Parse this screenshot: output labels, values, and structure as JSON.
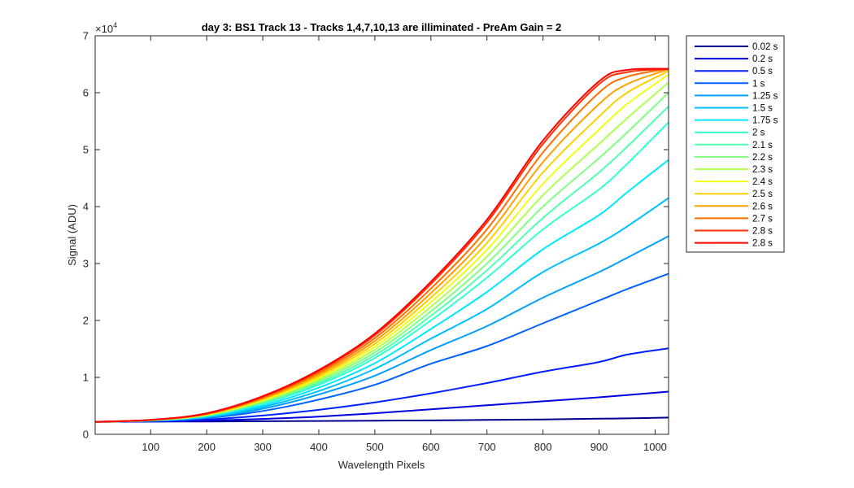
{
  "chart_data": {
    "type": "line",
    "title": "day 3: BS1  Track 13 - Tracks 1,4,7,10,13 are illiminated - PreAm Gain = 2",
    "xlabel": "Wavelength Pixels",
    "ylabel": "Signal (ADU)",
    "y_exponent_label": "×10",
    "y_exponent_power": "4",
    "xlim": [
      1,
      1024
    ],
    "ylim": [
      0,
      70000
    ],
    "xticks": [
      100,
      200,
      300,
      400,
      500,
      600,
      700,
      800,
      900,
      1000
    ],
    "xtick_labels": [
      "100",
      "200",
      "300",
      "400",
      "500",
      "600",
      "700",
      "800",
      "900",
      "1000"
    ],
    "yticks": [
      0,
      10000,
      20000,
      30000,
      40000,
      50000,
      60000,
      70000
    ],
    "ytick_labels": [
      "0",
      "1",
      "2",
      "3",
      "4",
      "5",
      "6",
      "7"
    ],
    "grid": false,
    "legend_position": "outside-right",
    "x": [
      1,
      100,
      200,
      300,
      400,
      500,
      600,
      700,
      800,
      900,
      950,
      1024
    ],
    "series": [
      {
        "name": "0.02 s",
        "color": "#00008f",
        "values": [
          2200,
          2230,
          2260,
          2300,
          2340,
          2390,
          2450,
          2530,
          2620,
          2740,
          2800,
          2950
        ]
      },
      {
        "name": "0.2 s",
        "color": "#0000df",
        "values": [
          2200,
          2250,
          2400,
          2700,
          3100,
          3700,
          4400,
          5100,
          5800,
          6500,
          6900,
          7500
        ]
      },
      {
        "name": "0.5 s",
        "color": "#0020ff",
        "values": [
          2200,
          2300,
          2600,
          3300,
          4300,
          5600,
          7200,
          9000,
          11000,
          12700,
          14000,
          15100
        ]
      },
      {
        "name": "1 s",
        "color": "#0060ff",
        "values": [
          2200,
          2350,
          2850,
          4100,
          6100,
          8700,
          12400,
          15500,
          19500,
          23500,
          25500,
          28200
        ]
      },
      {
        "name": "1.25 s",
        "color": "#009fff",
        "values": [
          2200,
          2380,
          2950,
          4500,
          7000,
          10300,
          14800,
          19000,
          24000,
          28500,
          31000,
          34800
        ]
      },
      {
        "name": "1.5 s",
        "color": "#00bfff",
        "values": [
          2200,
          2410,
          3050,
          4800,
          7600,
          11500,
          16800,
          22000,
          28500,
          33500,
          36500,
          41500
        ]
      },
      {
        "name": "1.75 s",
        "color": "#00e8ff",
        "values": [
          2200,
          2430,
          3150,
          5100,
          8200,
          12500,
          18500,
          25000,
          32500,
          38500,
          42500,
          48200
        ]
      },
      {
        "name": "2 s",
        "color": "#30ffcf",
        "values": [
          2200,
          2450,
          3250,
          5400,
          8700,
          13400,
          20000,
          27500,
          36000,
          43000,
          47500,
          54800
        ]
      },
      {
        "name": "2.1 s",
        "color": "#50ffaf",
        "values": [
          2200,
          2460,
          3300,
          5550,
          9000,
          13900,
          20800,
          28800,
          38000,
          46000,
          50500,
          57600
        ]
      },
      {
        "name": "2.2 s",
        "color": "#80ff80",
        "values": [
          2200,
          2470,
          3350,
          5700,
          9300,
          14400,
          21600,
          30000,
          40000,
          48500,
          53000,
          60000
        ]
      },
      {
        "name": "2.3 s",
        "color": "#afff50",
        "values": [
          2200,
          2480,
          3400,
          5850,
          9600,
          14900,
          22400,
          31200,
          42000,
          51000,
          55500,
          61800
        ]
      },
      {
        "name": "2.4 s",
        "color": "#efff10",
        "values": [
          2200,
          2490,
          3450,
          6000,
          9900,
          15400,
          23200,
          32400,
          44000,
          53500,
          58000,
          63200
        ]
      },
      {
        "name": "2.5 s",
        "color": "#ffcf00",
        "values": [
          2200,
          2500,
          3500,
          6150,
          10200,
          15900,
          24000,
          33600,
          46000,
          55800,
          60000,
          63800
        ]
      },
      {
        "name": "2.6 s",
        "color": "#ff9f00",
        "values": [
          2200,
          2510,
          3550,
          6300,
          10500,
          16400,
          24800,
          34800,
          47800,
          58000,
          61500,
          64100
        ]
      },
      {
        "name": "2.7 s",
        "color": "#ff6f00",
        "values": [
          2200,
          2520,
          3600,
          6450,
          10800,
          16900,
          25600,
          36000,
          49500,
          60000,
          62800,
          64200
        ]
      },
      {
        "name": "2.8 s",
        "color": "#ff3000",
        "values": [
          2200,
          2530,
          3650,
          6600,
          11100,
          17400,
          26400,
          37200,
          51000,
          61500,
          63600,
          64200
        ]
      },
      {
        "name": "2.8 s",
        "color": "#ff0000",
        "values": [
          2200,
          2540,
          3700,
          6700,
          11300,
          17700,
          26800,
          37700,
          51600,
          62000,
          64000,
          64200
        ]
      }
    ]
  }
}
